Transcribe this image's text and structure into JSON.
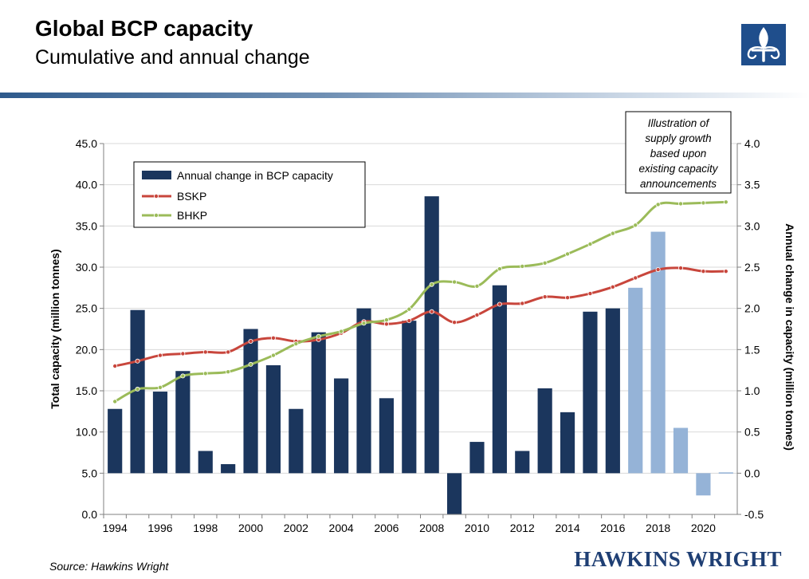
{
  "header": {
    "title": "Global BCP capacity",
    "subtitle": "Cumulative and annual change"
  },
  "footer": {
    "source": "Source: Hawkins Wright",
    "brand": "HAWKINS WRIGHT"
  },
  "logo_icon": "fleur-de-lis-icon",
  "chart_data": {
    "type": "bar",
    "x": [
      1994,
      1995,
      1996,
      1997,
      1998,
      1999,
      2000,
      2001,
      2002,
      2003,
      2004,
      2005,
      2006,
      2007,
      2008,
      2009,
      2010,
      2011,
      2012,
      2013,
      2014,
      2015,
      2016,
      2017,
      2018,
      2019,
      2020,
      2021
    ],
    "x_tick_labels": [
      "1994",
      "1996",
      "1998",
      "2000",
      "2002",
      "2004",
      "2006",
      "2008",
      "2010",
      "2012",
      "2014",
      "2016",
      "2018",
      "2020"
    ],
    "x_tick_values": [
      1994,
      1996,
      1998,
      2000,
      2002,
      2004,
      2006,
      2008,
      2010,
      2012,
      2014,
      2016,
      2018,
      2020
    ],
    "ylabel": "Total capacity (million tonnes)",
    "ylim": [
      0,
      45
    ],
    "y_ticks": [
      "0.0",
      "5.0",
      "10.0",
      "15.0",
      "20.0",
      "25.0",
      "30.0",
      "35.0",
      "40.0",
      "45.0"
    ],
    "y2label": "Annual change in capacity (million tonnes)",
    "y2lim": [
      -0.5,
      4.0
    ],
    "y2_ticks": [
      "-0.5",
      "0.0",
      "0.5",
      "1.0",
      "1.5",
      "2.0",
      "2.5",
      "3.0",
      "3.5",
      "4.0"
    ],
    "series": [
      {
        "name": "Annual change in BCP capacity",
        "type": "bar",
        "axis": "right",
        "values": [
          0.78,
          1.98,
          0.99,
          1.24,
          0.27,
          0.11,
          1.75,
          1.31,
          0.78,
          1.71,
          1.15,
          2.0,
          0.91,
          1.85,
          3.36,
          -0.5,
          0.38,
          2.28,
          0.27,
          1.03,
          0.74,
          1.96,
          2.0,
          2.25,
          2.93,
          0.55,
          -0.27,
          0.01
        ],
        "projected_from": 2017,
        "color": "#1b365d",
        "projected_color": "#95b3d7"
      },
      {
        "name": "BSKP",
        "type": "line",
        "axis": "left",
        "values": [
          18.0,
          18.6,
          19.3,
          19.5,
          19.7,
          19.7,
          21.0,
          21.4,
          21.0,
          21.2,
          22.0,
          23.4,
          23.1,
          23.5,
          24.6,
          23.3,
          24.2,
          25.5,
          25.6,
          26.4,
          26.3,
          26.8,
          27.6,
          28.7,
          29.7,
          29.9,
          29.5,
          29.5
        ],
        "color": "#c8463c"
      },
      {
        "name": "BHKP",
        "type": "line",
        "axis": "left",
        "values": [
          13.7,
          15.2,
          15.4,
          16.8,
          17.1,
          17.3,
          18.2,
          19.3,
          20.7,
          21.6,
          22.2,
          23.2,
          23.6,
          24.9,
          27.9,
          28.2,
          27.7,
          29.8,
          30.1,
          30.5,
          31.6,
          32.8,
          34.1,
          35.1,
          37.6,
          37.7,
          37.8,
          37.9
        ],
        "color": "#9bbb59"
      }
    ],
    "legend": "top-left",
    "annotation": [
      "Illustration of",
      "supply growth",
      "based upon",
      "existing capacity",
      "announcements"
    ],
    "grid": true
  }
}
